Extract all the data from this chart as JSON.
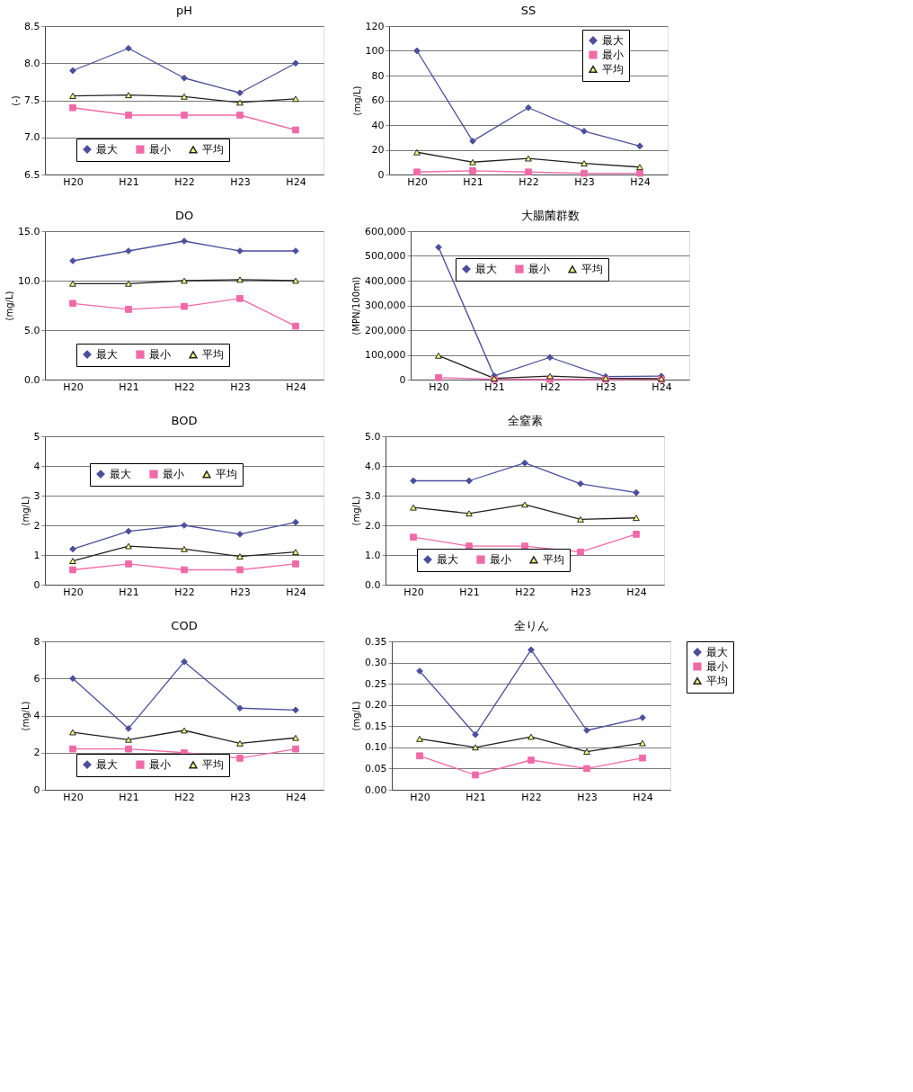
{
  "chart_data": [
    {
      "type": "line",
      "title": "pH",
      "ylabel": "(-)",
      "categories": [
        "H20",
        "H21",
        "H22",
        "H23",
        "H24"
      ],
      "ylim": [
        6.5,
        8.5
      ],
      "yticks": [
        6.5,
        {
          "value": 7,
          "label": "7.0"
        },
        7.5,
        {
          "value": 8,
          "label": "8.0"
        },
        8.5
      ],
      "grid": "y",
      "legend": "bottom",
      "series": [
        {
          "name": "最大",
          "color": "#4b4f9c",
          "marker": "diamond",
          "values": [
            7.9,
            8.2,
            7.8,
            7.6,
            8.0
          ]
        },
        {
          "name": "最小",
          "color": "#f06aa8",
          "marker": "square",
          "values": [
            7.4,
            7.3,
            7.3,
            7.3,
            7.1
          ]
        },
        {
          "name": "平均",
          "color": "#222222",
          "marker": "triangle",
          "values": [
            7.56,
            7.57,
            7.55,
            7.47,
            7.52
          ]
        }
      ]
    },
    {
      "type": "line",
      "title": "SS",
      "ylabel": "(mg/L)",
      "categories": [
        "H20",
        "H21",
        "H22",
        "H23",
        "H24"
      ],
      "ylim": [
        0,
        120
      ],
      "yticks": [
        0,
        20,
        40,
        60,
        80,
        100,
        120
      ],
      "grid": "y",
      "legend": "top right",
      "series": [
        {
          "name": "最大",
          "color": "#4b4f9c",
          "marker": "diamond",
          "values": [
            100,
            27,
            54,
            35,
            23
          ]
        },
        {
          "name": "最小",
          "color": "#f06aa8",
          "marker": "square",
          "values": [
            2,
            3,
            2,
            1,
            1
          ]
        },
        {
          "name": "平均",
          "color": "#222222",
          "marker": "triangle",
          "values": [
            18,
            10,
            13,
            9,
            6
          ]
        }
      ]
    },
    {
      "type": "line",
      "title": "DO",
      "ylabel": "(mg/L)",
      "categories": [
        "H20",
        "H21",
        "H22",
        "H23",
        "H24"
      ],
      "ylim": [
        0,
        15
      ],
      "yticks": [
        {
          "value": 0,
          "label": "0.0"
        },
        {
          "value": 5,
          "label": "5.0"
        },
        {
          "value": 10,
          "label": "10.0"
        },
        {
          "value": 15,
          "label": "15.0"
        }
      ],
      "grid": "y",
      "legend": "bottom",
      "series": [
        {
          "name": "最大",
          "color": "#4b4f9c",
          "marker": "diamond",
          "values": [
            12,
            13,
            14,
            13,
            13
          ]
        },
        {
          "name": "最小",
          "color": "#f06aa8",
          "marker": "square",
          "values": [
            7.7,
            7.1,
            7.4,
            8.2,
            5.4
          ]
        },
        {
          "name": "平均",
          "color": "#222222",
          "marker": "triangle",
          "values": [
            9.7,
            9.7,
            10.0,
            10.1,
            10.0
          ]
        }
      ]
    },
    {
      "type": "line",
      "title": "大腸菌群数",
      "ylabel": "(MPN/100ml)",
      "categories": [
        "H20",
        "H21",
        "H22",
        "H23",
        "H24"
      ],
      "ylim": [
        0,
        600000
      ],
      "yticks": [
        0,
        {
          "value": 100000,
          "label": "100,000"
        },
        {
          "value": 200000,
          "label": "200,000"
        },
        {
          "value": 300000,
          "label": "300,000"
        },
        {
          "value": 400000,
          "label": "400,000"
        },
        {
          "value": 500000,
          "label": "500,000"
        },
        {
          "value": 600000,
          "label": "600,000"
        }
      ],
      "grid": "y",
      "legend": "top",
      "series": [
        {
          "name": "最大",
          "color": "#4b4f9c",
          "marker": "diamond",
          "values": [
            535000,
            15000,
            90000,
            12000,
            14000
          ]
        },
        {
          "name": "最小",
          "color": "#f06aa8",
          "marker": "square",
          "values": [
            8000,
            1000,
            1000,
            1000,
            1000
          ]
        },
        {
          "name": "平均",
          "color": "#222222",
          "marker": "triangle",
          "values": [
            97000,
            5000,
            14000,
            6000,
            4000
          ]
        }
      ]
    },
    {
      "type": "line",
      "title": "BOD",
      "ylabel": "(mg/L)",
      "categories": [
        "H20",
        "H21",
        "H22",
        "H23",
        "H24"
      ],
      "ylim": [
        0,
        5
      ],
      "yticks": [
        0,
        1,
        2,
        3,
        4,
        5
      ],
      "grid": "y",
      "legend": "top",
      "series": [
        {
          "name": "最大",
          "color": "#4b4f9c",
          "marker": "diamond",
          "values": [
            1.2,
            1.8,
            2.0,
            1.7,
            2.1
          ]
        },
        {
          "name": "最小",
          "color": "#f06aa8",
          "marker": "square",
          "values": [
            0.5,
            0.7,
            0.5,
            0.5,
            0.7
          ]
        },
        {
          "name": "平均",
          "color": "#222222",
          "marker": "triangle",
          "values": [
            0.8,
            1.3,
            1.2,
            0.95,
            1.1
          ]
        }
      ]
    },
    {
      "type": "line",
      "title": "全窒素",
      "ylabel": "(mg/L)",
      "categories": [
        "H20",
        "H21",
        "H22",
        "H23",
        "H24"
      ],
      "ylim": [
        0,
        5
      ],
      "yticks": [
        {
          "value": 0,
          "label": "0.0"
        },
        {
          "value": 1,
          "label": "1.0"
        },
        {
          "value": 2,
          "label": "2.0"
        },
        {
          "value": 3,
          "label": "3.0"
        },
        {
          "value": 4,
          "label": "4.0"
        },
        {
          "value": 5,
          "label": "5.0"
        }
      ],
      "grid": "y",
      "legend": "bottom",
      "series": [
        {
          "name": "最大",
          "color": "#4b4f9c",
          "marker": "diamond",
          "values": [
            3.5,
            3.5,
            4.1,
            3.4,
            3.1
          ]
        },
        {
          "name": "最小",
          "color": "#f06aa8",
          "marker": "square",
          "values": [
            1.6,
            1.3,
            1.3,
            1.1,
            1.7
          ]
        },
        {
          "name": "平均",
          "color": "#222222",
          "marker": "triangle",
          "values": [
            2.6,
            2.4,
            2.7,
            2.2,
            2.25
          ]
        }
      ]
    },
    {
      "type": "line",
      "title": "COD",
      "ylabel": "(mg/L)",
      "categories": [
        "H20",
        "H21",
        "H22",
        "H23",
        "H24"
      ],
      "ylim": [
        0,
        8
      ],
      "yticks": [
        0,
        2,
        4,
        6,
        8
      ],
      "grid": "y",
      "legend": "bottom",
      "series": [
        {
          "name": "最大",
          "color": "#4b4f9c",
          "marker": "diamond",
          "values": [
            6.0,
            3.3,
            6.9,
            4.4,
            4.3
          ]
        },
        {
          "name": "最小",
          "color": "#f06aa8",
          "marker": "square",
          "values": [
            2.2,
            2.2,
            2.0,
            1.7,
            2.2
          ]
        },
        {
          "name": "平均",
          "color": "#222222",
          "marker": "triangle",
          "values": [
            3.1,
            2.7,
            3.2,
            2.5,
            2.8
          ]
        }
      ]
    },
    {
      "type": "line",
      "title": "全りん",
      "ylabel": "(mg/L)",
      "categories": [
        "H20",
        "H21",
        "H22",
        "H23",
        "H24"
      ],
      "ylim": [
        0,
        0.35
      ],
      "yticks": [
        {
          "value": 0,
          "label": "0.00"
        },
        0.05,
        {
          "value": 0.1,
          "label": "0.10"
        },
        0.15,
        {
          "value": 0.2,
          "label": "0.20"
        },
        0.25,
        {
          "value": 0.3,
          "label": "0.30"
        },
        0.35
      ],
      "grid": "y",
      "legend": "right",
      "series": [
        {
          "name": "最大",
          "color": "#4b4f9c",
          "marker": "diamond",
          "values": [
            0.28,
            0.13,
            0.33,
            0.14,
            0.17
          ]
        },
        {
          "name": "最小",
          "color": "#f06aa8",
          "marker": "square",
          "values": [
            0.08,
            0.035,
            0.07,
            0.05,
            0.075
          ]
        },
        {
          "name": "平均",
          "color": "#222222",
          "marker": "triangle",
          "values": [
            0.12,
            0.1,
            0.125,
            0.09,
            0.11
          ]
        }
      ]
    }
  ]
}
